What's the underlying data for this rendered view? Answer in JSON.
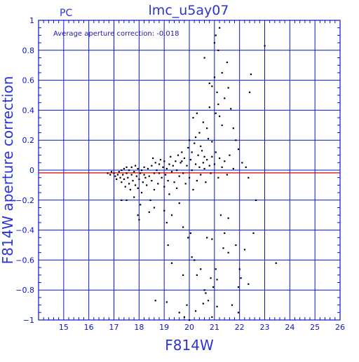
{
  "chart_data": {
    "type": "scatter",
    "title": "lmc_u5ay07",
    "corner_label": "PC",
    "annotation": "Average aperture correction: -0.018",
    "xlabel": "F814W",
    "ylabel": "F814W aperture correction",
    "xlim": [
      14,
      26
    ],
    "ylim": [
      -1,
      1
    ],
    "x_ticks": [
      15,
      16,
      17,
      18,
      19,
      20,
      21,
      22,
      23,
      24,
      25,
      26
    ],
    "y_ticks": [
      -1,
      -0.8,
      -0.6,
      -0.4,
      -0.2,
      0,
      0.2,
      0.4,
      0.6,
      0.8,
      1
    ],
    "y_tick_labels": [
      "−1",
      "−0.8",
      "−0.6",
      "−0.4",
      "−0.2",
      "0",
      "0.2",
      "0.4",
      "0.6",
      "0.8",
      "1"
    ],
    "grid": true,
    "reference_line": {
      "y": -0.018,
      "color": "#d40000"
    },
    "colors": {
      "axes": "#0a14c8",
      "text": "#2a34d6",
      "points": "#000000"
    },
    "series": [
      {
        "points": [
          [
            16.75,
            -0.02
          ],
          [
            16.85,
            -0.03
          ],
          [
            16.9,
            -0.01
          ],
          [
            17.0,
            -0.02
          ],
          [
            17.05,
            -0.04
          ],
          [
            17.1,
            -0.06
          ],
          [
            17.15,
            -0.03
          ],
          [
            17.2,
            -0.01
          ],
          [
            17.25,
            -0.05
          ],
          [
            17.3,
            0.0
          ],
          [
            17.3,
            -0.08
          ],
          [
            17.35,
            -0.03
          ],
          [
            17.4,
            0.01
          ],
          [
            17.4,
            -0.06
          ],
          [
            17.45,
            -0.11
          ],
          [
            17.5,
            0.02
          ],
          [
            17.5,
            -0.02
          ],
          [
            17.55,
            -0.05
          ],
          [
            17.6,
            -0.09
          ],
          [
            17.6,
            0.0
          ],
          [
            17.65,
            -0.13
          ],
          [
            17.7,
            -0.03
          ],
          [
            17.7,
            0.02
          ],
          [
            17.75,
            -0.07
          ],
          [
            17.8,
            -0.01
          ],
          [
            17.85,
            -0.1
          ],
          [
            17.85,
            0.03
          ],
          [
            17.9,
            -0.04
          ],
          [
            17.95,
            -0.12
          ],
          [
            17.95,
            0.01
          ],
          [
            18.0,
            -0.06
          ],
          [
            18.05,
            -0.02
          ],
          [
            18.1,
            0.0
          ],
          [
            18.1,
            -0.15
          ],
          [
            18.15,
            -0.08
          ],
          [
            18.2,
            -0.03
          ],
          [
            18.2,
            0.02
          ],
          [
            18.25,
            -0.05
          ],
          [
            18.3,
            -0.1
          ],
          [
            18.35,
            0.01
          ],
          [
            18.4,
            -0.04
          ],
          [
            18.45,
            -0.2
          ],
          [
            18.5,
            0.03
          ],
          [
            18.5,
            -0.07
          ],
          [
            18.55,
            0.08
          ],
          [
            18.6,
            -0.02
          ],
          [
            18.6,
            -0.13
          ],
          [
            18.65,
            0.05
          ],
          [
            18.7,
            0.0
          ],
          [
            18.75,
            -0.09
          ],
          [
            18.8,
            -0.02
          ],
          [
            18.8,
            0.04
          ],
          [
            18.85,
            0.07
          ],
          [
            18.9,
            -0.05
          ],
          [
            18.95,
            0.02
          ],
          [
            19.0,
            -0.11
          ],
          [
            19.0,
            0.06
          ],
          [
            19.05,
            -0.03
          ],
          [
            19.1,
            0.01
          ],
          [
            19.15,
            -0.07
          ],
          [
            19.2,
            0.04
          ],
          [
            19.2,
            -0.16
          ],
          [
            19.25,
            0.09
          ],
          [
            19.3,
            -0.01
          ],
          [
            19.35,
            0.03
          ],
          [
            19.4,
            -0.08
          ],
          [
            19.45,
            0.06
          ],
          [
            19.5,
            0.0
          ],
          [
            19.5,
            -0.12
          ],
          [
            19.55,
            0.1
          ],
          [
            19.6,
            -0.04
          ],
          [
            19.65,
            0.05
          ],
          [
            19.7,
            0.12
          ],
          [
            19.75,
            -0.02
          ],
          [
            19.8,
            0.08
          ],
          [
            19.85,
            -0.09
          ],
          [
            19.9,
            0.03
          ],
          [
            19.95,
            0.15
          ],
          [
            20.0,
            -0.05
          ],
          [
            20.05,
            0.07
          ],
          [
            20.1,
            0.0
          ],
          [
            20.15,
            -0.13
          ],
          [
            20.2,
            0.18
          ],
          [
            20.25,
            0.04
          ],
          [
            20.3,
            -0.07
          ],
          [
            20.35,
            0.1
          ],
          [
            20.4,
            0.02
          ],
          [
            20.45,
            -0.03
          ],
          [
            20.5,
            0.13
          ],
          [
            20.55,
            0.05
          ],
          [
            20.6,
            0.01
          ],
          [
            20.65,
            -0.08
          ],
          [
            20.7,
            0.07
          ],
          [
            20.75,
            0.21
          ],
          [
            20.8,
            0.03
          ],
          [
            20.85,
            -0.02
          ],
          [
            20.9,
            0.09
          ],
          [
            21.0,
            0.04
          ],
          [
            21.05,
            0.12
          ],
          [
            21.15,
            -0.05
          ],
          [
            21.2,
            0.08
          ],
          [
            21.3,
            0.02
          ],
          [
            21.4,
            0.06
          ],
          [
            21.5,
            -0.03
          ],
          [
            21.6,
            0.1
          ],
          [
            21.75,
            0.01
          ],
          [
            17.3,
            -0.2
          ],
          [
            17.5,
            -0.2
          ],
          [
            17.8,
            -0.18
          ],
          [
            18.05,
            -0.23
          ],
          [
            18.4,
            -0.28
          ],
          [
            17.95,
            -0.3
          ],
          [
            18.0,
            -0.33
          ],
          [
            18.6,
            -0.25
          ],
          [
            19.0,
            -0.27
          ],
          [
            19.1,
            -0.35
          ],
          [
            19.3,
            -0.3
          ],
          [
            19.6,
            -0.22
          ],
          [
            19.75,
            -0.38
          ],
          [
            18.65,
            -0.87
          ],
          [
            19.15,
            -0.5
          ],
          [
            19.95,
            -0.45
          ],
          [
            20.2,
            -0.6
          ],
          [
            20.3,
            -0.7
          ],
          [
            19.9,
            -0.9
          ],
          [
            19.3,
            -0.62
          ],
          [
            20.0,
            -1.0
          ],
          [
            19.8,
            -0.98
          ],
          [
            20.65,
            -0.82
          ],
          [
            20.75,
            -0.87
          ],
          [
            20.85,
            -0.72
          ],
          [
            21.1,
            -0.91
          ],
          [
            21.35,
            -0.52
          ],
          [
            21.4,
            -0.42
          ],
          [
            21.85,
            -0.5
          ],
          [
            22.05,
            -0.72
          ],
          [
            21.95,
            -0.78
          ],
          [
            22.35,
            -0.76
          ],
          [
            22.55,
            -0.42
          ],
          [
            22.65,
            -0.2
          ],
          [
            21.55,
            -0.32
          ],
          [
            21.7,
            -0.9
          ],
          [
            21.95,
            -0.95
          ],
          [
            22.0,
            -0.66
          ],
          [
            20.9,
            -0.98
          ],
          [
            20.95,
            -0.78
          ],
          [
            20.55,
            -0.89
          ],
          [
            20.45,
            -0.66
          ],
          [
            21.05,
            -0.66
          ],
          [
            20.6,
            -0.8
          ],
          [
            21.25,
            -0.3
          ],
          [
            21.55,
            -0.55
          ],
          [
            20.05,
            -0.42
          ],
          [
            20.1,
            -0.58
          ],
          [
            20.7,
            -0.45
          ],
          [
            21.1,
            -0.73
          ],
          [
            19.75,
            -0.7
          ],
          [
            19.6,
            -0.95
          ],
          [
            20.25,
            -0.94
          ],
          [
            20.9,
            -0.46
          ],
          [
            22.2,
            -0.53
          ],
          [
            23.45,
            -0.62
          ],
          [
            19.1,
            -0.88
          ],
          [
            20.3,
            0.38
          ],
          [
            20.4,
            0.25
          ],
          [
            20.55,
            0.32
          ],
          [
            20.7,
            0.28
          ],
          [
            20.8,
            0.42
          ],
          [
            20.9,
            0.56
          ],
          [
            21.0,
            0.62
          ],
          [
            21.05,
            0.38
          ],
          [
            21.1,
            0.52
          ],
          [
            21.15,
            0.44
          ],
          [
            21.2,
            0.36
          ],
          [
            21.3,
            0.3
          ],
          [
            21.4,
            0.48
          ],
          [
            21.55,
            0.55
          ],
          [
            21.65,
            0.41
          ],
          [
            21.75,
            0.28
          ],
          [
            21.85,
            0.2
          ],
          [
            21.95,
            0.14
          ],
          [
            22.1,
            0.05
          ],
          [
            22.25,
            0.02
          ],
          [
            22.35,
            -0.05
          ],
          [
            22.45,
            0.64
          ],
          [
            22.4,
            0.52
          ],
          [
            23.0,
            0.83
          ],
          [
            20.6,
            0.75
          ],
          [
            21.0,
            0.85
          ],
          [
            21.05,
            0.9
          ],
          [
            21.15,
            0.8
          ],
          [
            21.2,
            0.95
          ],
          [
            21.5,
            0.72
          ],
          [
            21.3,
            0.65
          ],
          [
            20.8,
            0.58
          ],
          [
            20.1,
            0.12
          ],
          [
            20.25,
            0.22
          ],
          [
            19.7,
            0.06
          ],
          [
            20.0,
            0.2
          ],
          [
            20.15,
            0.35
          ],
          [
            20.45,
            0.16
          ],
          [
            20.6,
            0.09
          ],
          [
            20.9,
            0.19
          ]
        ]
      }
    ]
  }
}
